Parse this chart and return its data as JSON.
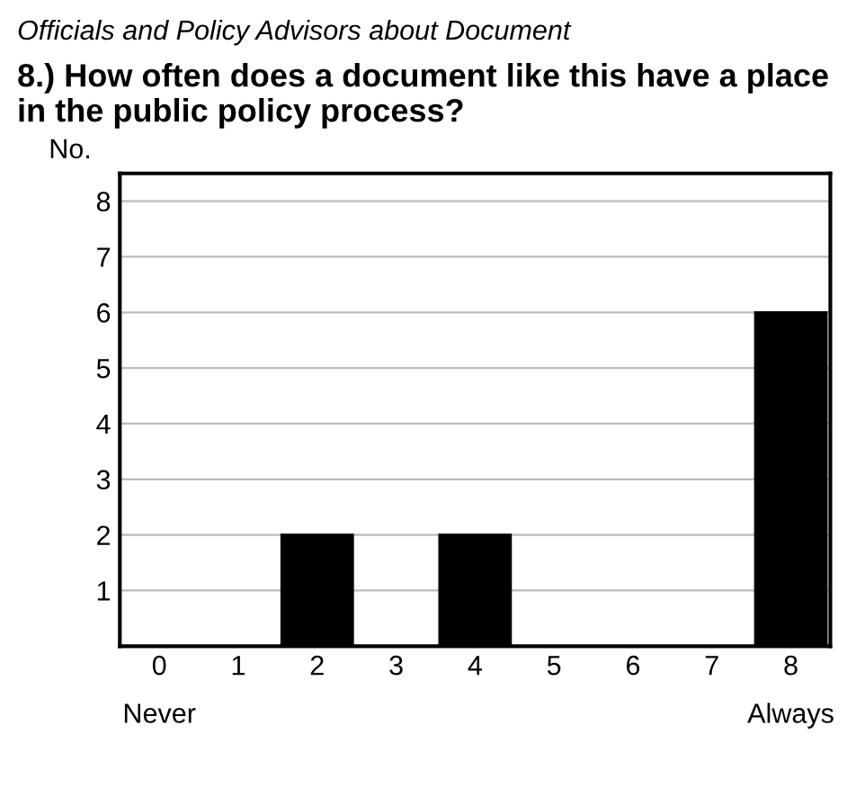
{
  "chart_data": {
    "type": "bar",
    "subtitle": "Officials and Policy Advisors about Document",
    "title": "8.) How often does a document like this have a place in the public policy process?",
    "ylabel": "No.",
    "categories": [
      "0",
      "1",
      "2",
      "3",
      "4",
      "5",
      "6",
      "7",
      "8"
    ],
    "values": [
      0,
      0,
      2,
      0,
      2,
      0,
      0,
      0,
      6
    ],
    "color": "#000000",
    "ylim": [
      0,
      8.5
    ],
    "yticks": [
      1,
      2,
      3,
      4,
      5,
      6,
      7,
      8
    ],
    "grid": "y",
    "annotations": [
      "Never",
      "Always"
    ]
  }
}
